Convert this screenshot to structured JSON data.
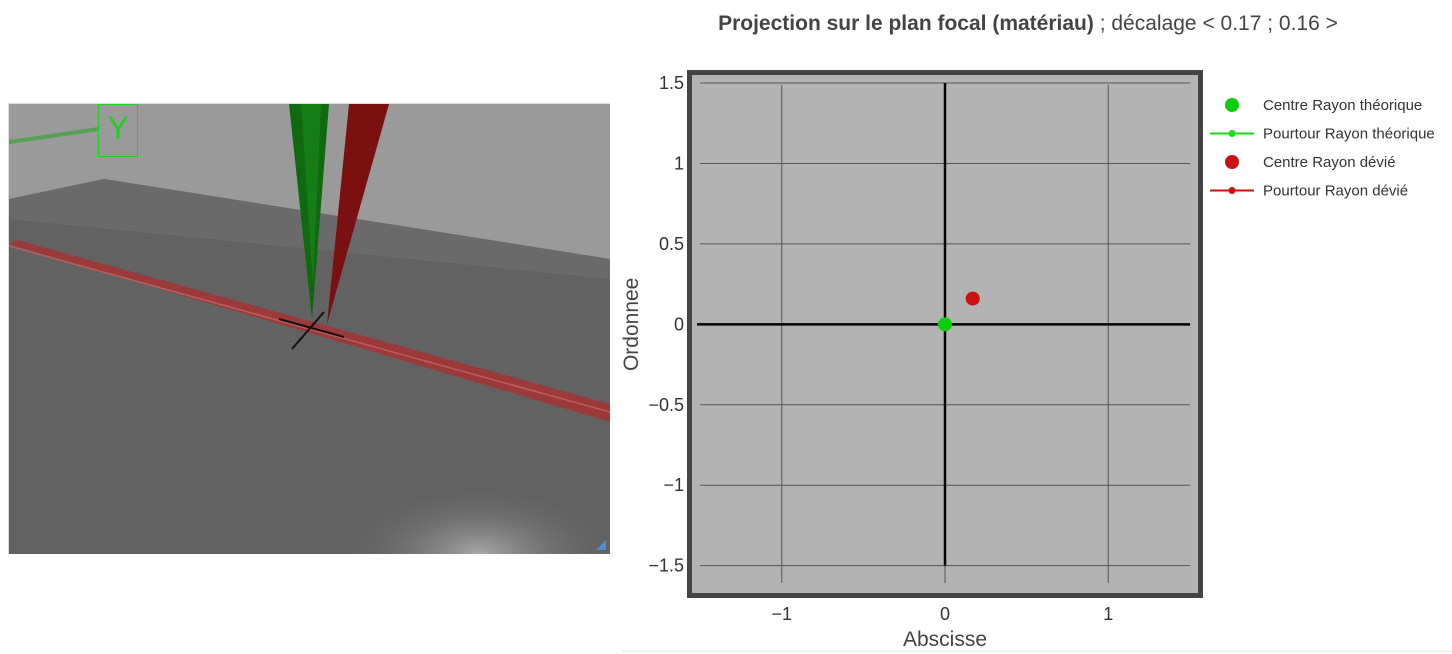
{
  "viewport": {
    "axis_label": "Y",
    "colors": {
      "background": "#6e6e6e",
      "sky": "#999999",
      "floor": "#5f5f5f",
      "axis_indicator": "#1fd11f",
      "theoretical_ray": "#0f6a0f",
      "deviated_ray": "#7a1010",
      "beam": "#9b3a3a",
      "cross": "#111111"
    }
  },
  "plot": {
    "title_bold": "Projection sur le plan focal (matériau)",
    "title_rest": " ; décalage < 0.17 ; 0.16 >",
    "chart_data": {
      "type": "scatter",
      "xlabel": "Abscisse",
      "ylabel": "Ordonnee",
      "xlim": [
        -1.55,
        1.55
      ],
      "ylim": [
        -1.67,
        1.55
      ],
      "xticks": [
        -1,
        0,
        1
      ],
      "yticks": [
        1.5,
        1,
        0.5,
        0,
        -0.5,
        -1,
        -1.5
      ],
      "xtick_labels": [
        "−1",
        "0",
        "1"
      ],
      "ytick_labels": [
        "1.5",
        "1",
        "0.5",
        "0",
        "−0.5",
        "−1",
        "−1.5"
      ],
      "grid": true,
      "legend_position": "right",
      "series": [
        {
          "name": "Centre Rayon théorique",
          "kind": "marker",
          "color": "#0ecc0e",
          "x": [
            0
          ],
          "y": [
            0
          ]
        },
        {
          "name": "Pourtour Rayon théorique",
          "kind": "line+marker",
          "color": "#10e010",
          "x": [],
          "y": []
        },
        {
          "name": "Centre Rayon dévié",
          "kind": "marker",
          "color": "#cc1111",
          "x": [
            0.17
          ],
          "y": [
            0.16
          ]
        },
        {
          "name": "Pourtour Rayon dévié",
          "kind": "line+marker",
          "color": "#cc1111",
          "x": [],
          "y": []
        }
      ],
      "colors": {
        "plot_background": "#b3b3b3",
        "frame": "#444444",
        "grid": "#555555",
        "axes": "#000000"
      }
    }
  }
}
